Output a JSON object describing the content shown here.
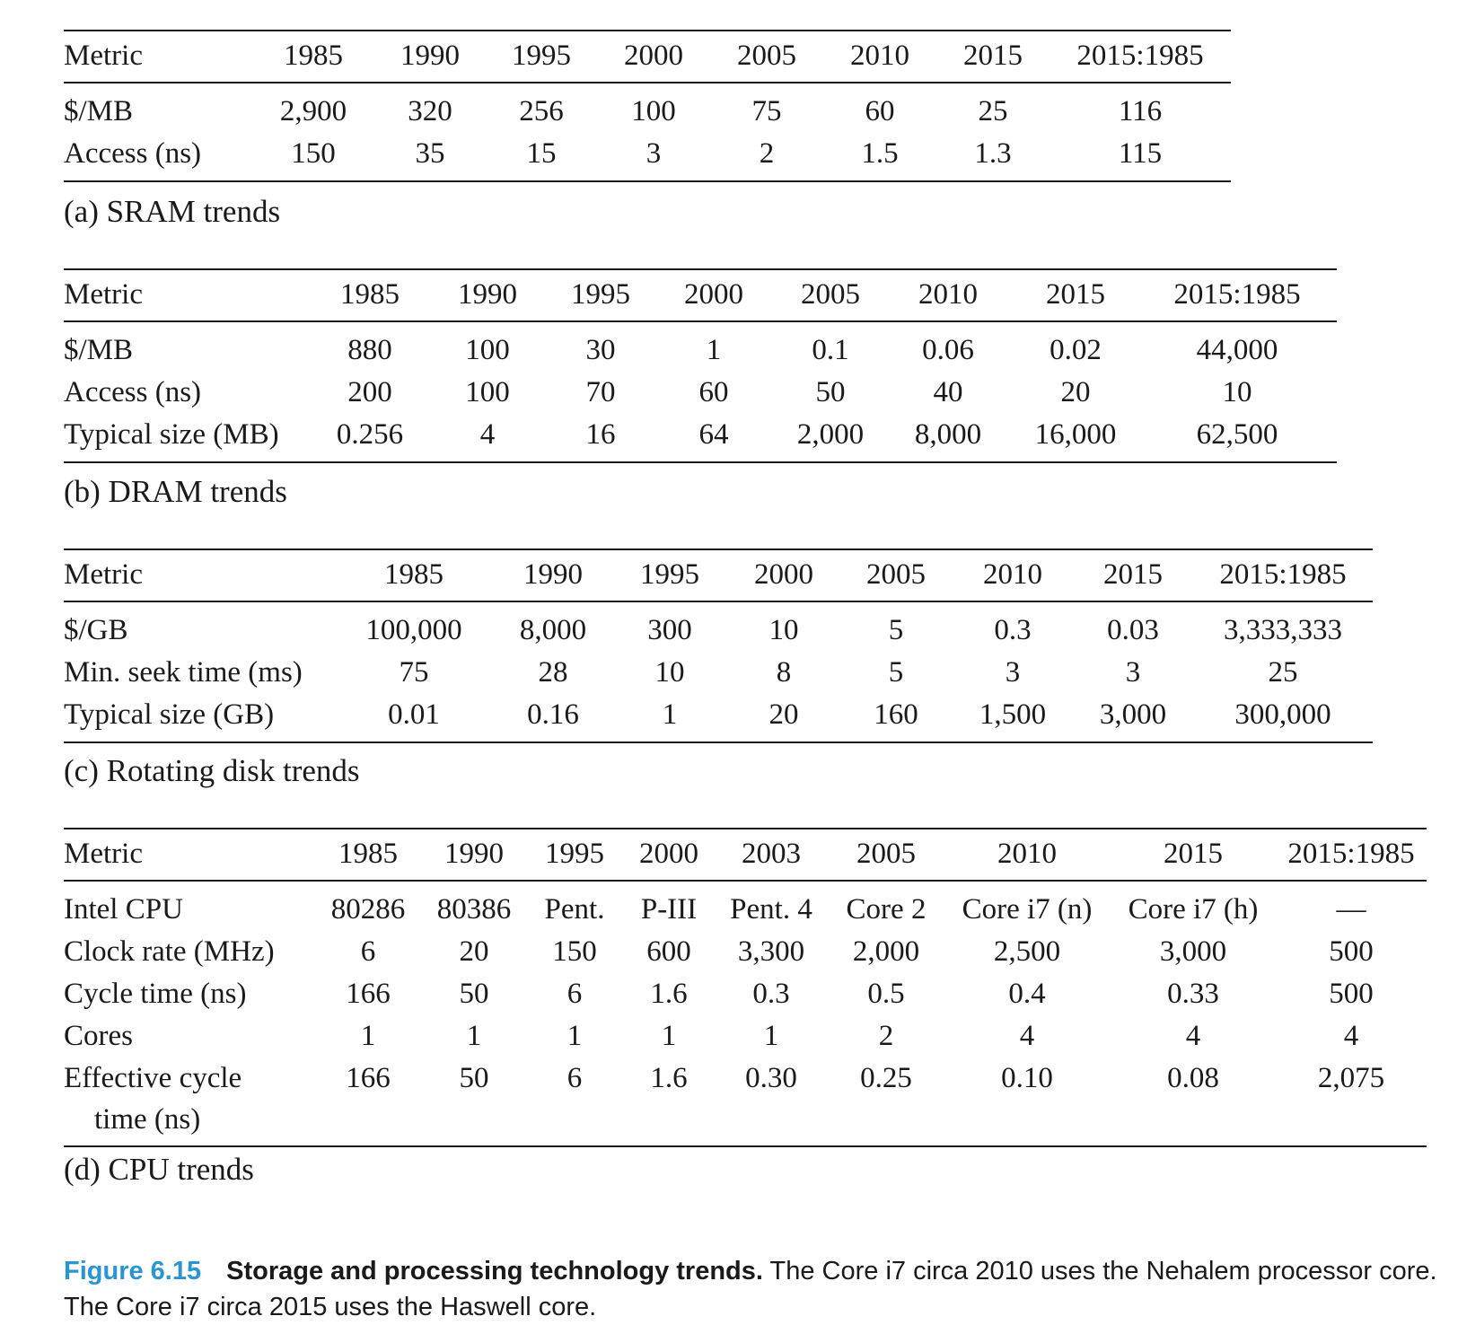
{
  "tables": {
    "sram": {
      "caption": "(a) SRAM trends",
      "headers": [
        "Metric",
        "1985",
        "1990",
        "1995",
        "2000",
        "2005",
        "2010",
        "2015",
        "2015:1985"
      ],
      "rows": [
        [
          "$/MB",
          "2,900",
          "320",
          "256",
          "100",
          "75",
          "60",
          "25",
          "116"
        ],
        [
          "Access (ns)",
          "150",
          "35",
          "15",
          "3",
          "2",
          "1.5",
          "1.3",
          "115"
        ]
      ]
    },
    "dram": {
      "caption": "(b) DRAM trends",
      "headers": [
        "Metric",
        "1985",
        "1990",
        "1995",
        "2000",
        "2005",
        "2010",
        "2015",
        "2015:1985"
      ],
      "rows": [
        [
          "$/MB",
          "880",
          "100",
          "30",
          "1",
          "0.1",
          "0.06",
          "0.02",
          "44,000"
        ],
        [
          "Access (ns)",
          "200",
          "100",
          "70",
          "60",
          "50",
          "40",
          "20",
          "10"
        ],
        [
          "Typical size (MB)",
          "0.256",
          "4",
          "16",
          "64",
          "2,000",
          "8,000",
          "16,000",
          "62,500"
        ]
      ]
    },
    "disk": {
      "caption": "(c) Rotating disk trends",
      "headers": [
        "Metric",
        "1985",
        "1990",
        "1995",
        "2000",
        "2005",
        "2010",
        "2015",
        "2015:1985"
      ],
      "rows": [
        [
          "$/GB",
          "100,000",
          "8,000",
          "300",
          "10",
          "5",
          "0.3",
          "0.03",
          "3,333,333"
        ],
        [
          "Min. seek time (ms)",
          "75",
          "28",
          "10",
          "8",
          "5",
          "3",
          "3",
          "25"
        ],
        [
          "Typical size (GB)",
          "0.01",
          "0.16",
          "1",
          "20",
          "160",
          "1,500",
          "3,000",
          "300,000"
        ]
      ]
    },
    "cpu": {
      "caption": "(d) CPU trends",
      "headers": [
        "Metric",
        "1985",
        "1990",
        "1995",
        "2000",
        "2003",
        "2005",
        "2010",
        "2015",
        "2015:1985"
      ],
      "rows": [
        [
          "Intel CPU",
          "80286",
          "80386",
          "Pent.",
          "P-III",
          "Pent. 4",
          "Core 2",
          "Core i7 (n)",
          "Core i7 (h)",
          "—"
        ],
        [
          "Clock rate (MHz)",
          "6",
          "20",
          "150",
          "600",
          "3,300",
          "2,000",
          "2,500",
          "3,000",
          "500"
        ],
        [
          "Cycle time (ns)",
          "166",
          "50",
          "6",
          "1.6",
          "0.3",
          "0.5",
          "0.4",
          "0.33",
          "500"
        ],
        [
          "Cores",
          "1",
          "1",
          "1",
          "1",
          "1",
          "2",
          "4",
          "4",
          "4"
        ],
        [
          "Effective cycle",
          "166",
          "50",
          "6",
          "1.6",
          "0.30",
          "0.25",
          "0.10",
          "0.08",
          "2,075"
        ]
      ],
      "row_continuation": "time (ns)"
    }
  },
  "figure": {
    "number": "Figure 6.15",
    "title": "Storage and processing technology trends.",
    "text": "The Core i7 circa 2010 uses the Nehalem processor core. The Core i7 circa 2015 uses the Haswell core."
  }
}
